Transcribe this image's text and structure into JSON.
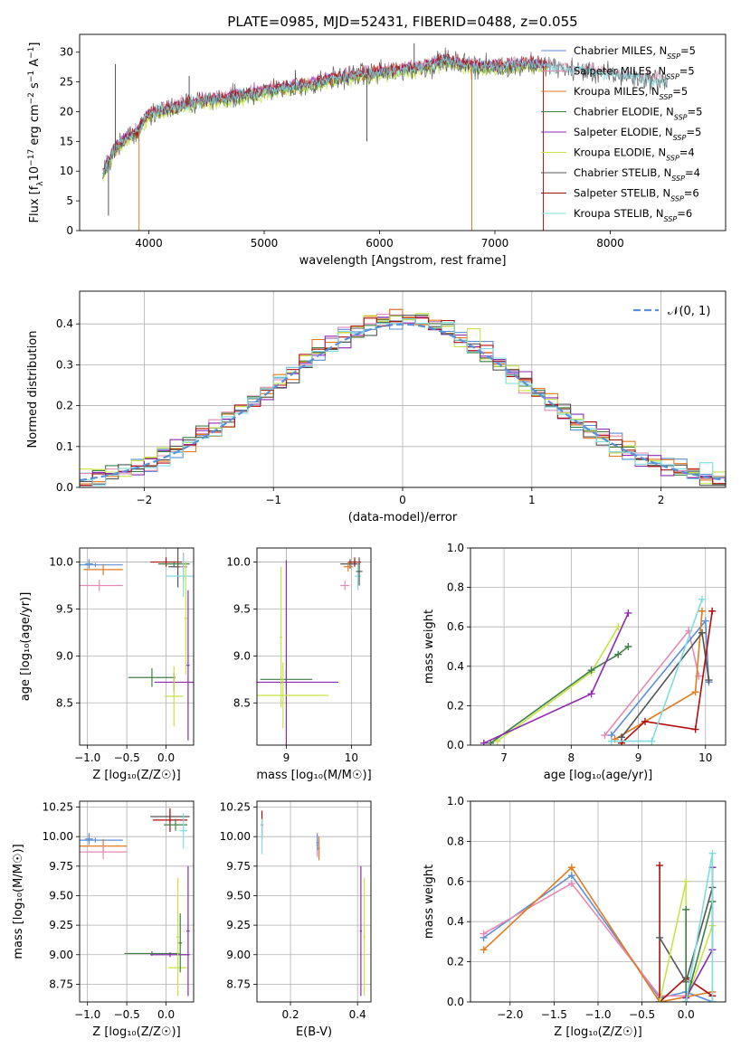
{
  "figure": {
    "title": "PLATE=0985, MJD=52431, FIBERID=0488, z=0.055"
  },
  "colors": {
    "chabrier_miles": "#5b8fd6",
    "salpeter_miles": "#e48ab4",
    "kroupa_miles": "#e27a1e",
    "chabrier_elodie": "#3f7f45",
    "salpeter_elodie": "#8e2ab0",
    "kroupa_elodie": "#c6e447",
    "chabrier_stelib": "#555555",
    "salpeter_stelib": "#b00e0e",
    "kroupa_stelib": "#7fdde0",
    "grid": "#b0b0b0",
    "gaussian": "#5b8fd6"
  },
  "chart_data": [
    {
      "id": "spectrum",
      "type": "line",
      "title": "PLATE=0985, MJD=52431, FIBERID=0488, z=0.055",
      "xlabel": "wavelength [Angstrom, rest frame]",
      "ylabel_parts": [
        "Flux [f",
        "λ",
        "10",
        "−17",
        " erg cm",
        "−2",
        " s",
        "−1",
        " A",
        "−1",
        "]"
      ],
      "xlim": [
        3400,
        9000
      ],
      "ylim": [
        0,
        33
      ],
      "xticks": [
        4000,
        5000,
        6000,
        7000,
        8000
      ],
      "yticks": [
        0,
        5,
        10,
        15,
        20,
        25,
        30
      ],
      "grid": false,
      "legend_position": "right",
      "continuum": {
        "x": [
          3600,
          3700,
          3800,
          3900,
          4000,
          4200,
          4400,
          4600,
          4800,
          5000,
          5200,
          5400,
          5600,
          5800,
          6000,
          6200,
          6400,
          6560,
          6700,
          6900,
          7100,
          7300,
          7500,
          7700,
          7900,
          8100,
          8300,
          8500
        ],
        "y": [
          9.5,
          13.5,
          15.5,
          16.5,
          19.5,
          20.5,
          21.5,
          22.0,
          22.5,
          23.5,
          24.0,
          24.5,
          25.5,
          26.0,
          26.5,
          27.0,
          27.5,
          28.5,
          28.0,
          27.5,
          27.5,
          28.0,
          27.5,
          27.0,
          26.5,
          26.0,
          25.5,
          25.0
        ]
      },
      "spikes": [
        {
          "x": 3650,
          "y": 2.5,
          "series": "Chabrier STELIB"
        },
        {
          "x": 3710,
          "y": 28.0,
          "series": "Chabrier STELIB"
        },
        {
          "x": 3915,
          "y": 0.0,
          "series": "Kroupa MILES"
        },
        {
          "x": 4350,
          "y": 26.0,
          "series": "Chabrier STELIB"
        },
        {
          "x": 5270,
          "y": 27.0,
          "series": "Chabrier STELIB"
        },
        {
          "x": 5890,
          "y": 15.0,
          "series": "Chabrier STELIB"
        },
        {
          "x": 6300,
          "y": 31.5,
          "series": "Chabrier STELIB"
        },
        {
          "x": 6800,
          "y": 0.0,
          "series": "Kroupa MILES"
        },
        {
          "x": 7420,
          "y": 0.0,
          "series": "Salpeter STELIB"
        }
      ],
      "series": [
        {
          "name": "Chabrier MILES",
          "nssp": "5",
          "color": "#5b8fd6",
          "offset": 0.2
        },
        {
          "name": "Salpeter MILES",
          "nssp": "5",
          "color": "#e48ab4",
          "offset": 0.5
        },
        {
          "name": "Kroupa MILES",
          "nssp": "5",
          "color": "#e27a1e",
          "offset": 0.0
        },
        {
          "name": "Chabrier ELODIE",
          "nssp": "5",
          "color": "#3f7f45",
          "offset": -0.3
        },
        {
          "name": "Salpeter ELODIE",
          "nssp": "5",
          "color": "#8e2ab0",
          "offset": 0.3
        },
        {
          "name": "Kroupa ELODIE",
          "nssp": "4",
          "color": "#c6e447",
          "offset": -0.6
        },
        {
          "name": "Chabrier STELIB",
          "nssp": "4",
          "color": "#555555",
          "offset": 0.0
        },
        {
          "name": "Salpeter STELIB",
          "nssp": "6",
          "color": "#b00e0e",
          "offset": 0.4
        },
        {
          "name": "Kroupa STELIB",
          "nssp": "6",
          "color": "#7fdde0",
          "offset": 0.1
        }
      ]
    },
    {
      "id": "residuals",
      "type": "line",
      "xlabel": "(data-model)/error",
      "ylabel": "Normed distribution",
      "xlim": [
        -2.5,
        2.5
      ],
      "ylim": [
        0,
        0.48
      ],
      "xticks": [
        -2,
        -1,
        0,
        1,
        2
      ],
      "yticks": [
        0.0,
        0.1,
        0.2,
        0.3,
        0.4
      ],
      "grid": true,
      "legend_position": "top-right",
      "gaussian_label": "𝒩(0, 1)",
      "bin_width": 0.1,
      "hist_series": [
        "#5b8fd6",
        "#e48ab4",
        "#e27a1e",
        "#3f7f45",
        "#8e2ab0",
        "#c6e447",
        "#555555",
        "#b00e0e",
        "#7fdde0"
      ]
    },
    {
      "id": "age_vs_Z",
      "type": "scatter",
      "xlabel": "Z [log₁₀(Z/Z☉)]",
      "ylabel": "age  [log₁₀(age/yr)]",
      "xlim": [
        -1.1,
        0.35
      ],
      "ylim": [
        8.05,
        10.15
      ],
      "xticks": [
        -1.0,
        -0.5,
        0.0
      ],
      "xticklabels": [
        "−1.0",
        "−0.5",
        "0.0"
      ],
      "yticks": [
        8.5,
        9.0,
        9.5,
        10.0
      ],
      "grid": true,
      "points": [
        {
          "x": -0.98,
          "y": 9.98,
          "xerr": 0.05,
          "yerr": 0.05,
          "color": "#5b8fd6"
        },
        {
          "x": -0.9,
          "y": 9.97,
          "xerr": 0.35,
          "yerr": 0.02,
          "color": "#5b8fd6"
        },
        {
          "x": -0.8,
          "y": 9.92,
          "xerr": 0.25,
          "yerr": 0.06,
          "color": "#e27a1e"
        },
        {
          "x": -0.85,
          "y": 9.75,
          "xerr": 0.3,
          "yerr": 0.06,
          "color": "#e48ab4"
        },
        {
          "x": 0.0,
          "y": 10.0,
          "xerr": 0.2,
          "yerr": 0.05,
          "color": "#b00e0e"
        },
        {
          "x": 0.1,
          "y": 9.98,
          "xerr": 0.2,
          "yerr": 0.03,
          "color": "#3f7f45"
        },
        {
          "x": 0.15,
          "y": 9.95,
          "xerr": 0.12,
          "yerr": 0.22,
          "color": "#555555"
        },
        {
          "x": 0.22,
          "y": 9.95,
          "xerr": 0.05,
          "yerr": 0.15,
          "color": "#e48ab4"
        },
        {
          "x": 0.22,
          "y": 9.85,
          "xerr": 0.22,
          "yerr": 0.22,
          "color": "#7fdde0"
        },
        {
          "x": -0.18,
          "y": 8.77,
          "xerr": 0.3,
          "yerr": 0.1,
          "color": "#3f7f45"
        },
        {
          "x": 0.1,
          "y": 8.72,
          "xerr": 0.25,
          "yerr": 0.1,
          "color": "#8e2ab0"
        },
        {
          "x": 0.1,
          "y": 8.57,
          "xerr": 0.12,
          "yerr": 0.32,
          "color": "#c6e447"
        },
        {
          "x": 0.28,
          "y": 8.9,
          "xerr": 0.02,
          "yerr": 0.8,
          "color": "#8e2ab0"
        },
        {
          "x": 0.25,
          "y": 9.4,
          "xerr": 0.02,
          "yerr": 0.6,
          "color": "#c6e447"
        }
      ]
    },
    {
      "id": "age_vs_mass",
      "type": "scatter",
      "xlabel": "mass [log₁₀(M/M☉)]",
      "xlim": [
        8.55,
        10.3
      ],
      "ylim": [
        8.05,
        10.15
      ],
      "xticks": [
        9,
        10
      ],
      "yticks": [
        8.5,
        9.0,
        9.5,
        10.0
      ],
      "grid": true,
      "points": [
        {
          "x": 9.98,
          "y": 9.98,
          "xerr": 0.15,
          "yerr": 0.05,
          "color": "#555555"
        },
        {
          "x": 10.05,
          "y": 10.0,
          "xerr": 0.1,
          "yerr": 0.05,
          "color": "#b00e0e"
        },
        {
          "x": 9.95,
          "y": 9.95,
          "xerr": 0.07,
          "yerr": 0.05,
          "color": "#e27a1e"
        },
        {
          "x": 9.9,
          "y": 9.75,
          "xerr": 0.07,
          "yerr": 0.05,
          "color": "#e48ab4"
        },
        {
          "x": 10.1,
          "y": 9.85,
          "xerr": 0.05,
          "yerr": 0.15,
          "color": "#7fdde0"
        },
        {
          "x": 10.12,
          "y": 9.9,
          "xerr": 0.05,
          "yerr": 0.15,
          "color": "#555555"
        },
        {
          "x": 9.0,
          "y": 8.75,
          "xerr": 0.4,
          "yerr": 0.1,
          "color": "#3f7f45"
        },
        {
          "x": 9.0,
          "y": 8.72,
          "xerr": 0.8,
          "yerr": 1.3,
          "color": "#8e2ab0"
        },
        {
          "x": 8.95,
          "y": 8.58,
          "xerr": 0.7,
          "yerr": 0.35,
          "color": "#c6e447"
        },
        {
          "x": 8.92,
          "y": 9.2,
          "xerr": 0.02,
          "yerr": 0.75,
          "color": "#c6e447"
        }
      ]
    },
    {
      "id": "mw_vs_age",
      "type": "line",
      "xlabel": "age  [log₁₀(age/yr)]",
      "ylabel": "mass weight",
      "xlim": [
        6.5,
        10.3
      ],
      "ylim": [
        0,
        1.0
      ],
      "xticks": [
        7,
        8,
        9,
        10
      ],
      "yticks": [
        0.0,
        0.2,
        0.4,
        0.6,
        0.8,
        1.0
      ],
      "grid": true,
      "series": [
        {
          "color": "#c6e447",
          "x": [
            6.9,
            8.3,
            8.7
          ],
          "y": [
            0.02,
            0.37,
            0.6
          ]
        },
        {
          "color": "#3f7f45",
          "x": [
            6.8,
            8.3,
            8.7,
            8.85
          ],
          "y": [
            0.01,
            0.38,
            0.46,
            0.5
          ]
        },
        {
          "color": "#8e2ab0",
          "x": [
            6.7,
            8.3,
            8.85
          ],
          "y": [
            0.01,
            0.26,
            0.67
          ]
        },
        {
          "color": "#e48ab4",
          "x": [
            8.5,
            9.75,
            9.9
          ],
          "y": [
            0.05,
            0.58,
            0.35
          ]
        },
        {
          "color": "#5b8fd6",
          "x": [
            8.6,
            10.0,
            10.05
          ],
          "y": [
            0.05,
            0.63,
            0.32
          ]
        },
        {
          "color": "#e27a1e",
          "x": [
            8.65,
            9.85,
            9.95
          ],
          "y": [
            0.03,
            0.27,
            0.68
          ]
        },
        {
          "color": "#555555",
          "x": [
            8.75,
            9.95,
            10.05
          ],
          "y": [
            0.04,
            0.57,
            0.33
          ]
        },
        {
          "color": "#b00e0e",
          "x": [
            8.75,
            9.1,
            9.85,
            10.1
          ],
          "y": [
            0.01,
            0.12,
            0.08,
            0.68
          ]
        },
        {
          "color": "#7fdde0",
          "x": [
            8.6,
            9.2,
            9.95
          ],
          "y": [
            0.02,
            0.02,
            0.74
          ]
        }
      ]
    },
    {
      "id": "mass_vs_Z",
      "type": "scatter",
      "xlabel": "Z [log₁₀(Z/Z☉)]",
      "ylabel": "mass [log₁₀(M/M☉)]",
      "xlim": [
        -1.1,
        0.35
      ],
      "ylim": [
        8.6,
        10.3
      ],
      "xticks": [
        -1.0,
        -0.5,
        0.0
      ],
      "xticklabels": [
        "−1.0",
        "−0.5",
        "0.0"
      ],
      "yticks": [
        8.75,
        9.0,
        9.25,
        9.5,
        9.75,
        10.0,
        10.25
      ],
      "grid": true,
      "points": [
        {
          "x": -0.98,
          "y": 9.98,
          "xerr": 0.05,
          "yerr": 0.05,
          "color": "#5b8fd6"
        },
        {
          "x": -0.9,
          "y": 9.97,
          "xerr": 0.35,
          "yerr": 0.02,
          "color": "#5b8fd6"
        },
        {
          "x": -0.8,
          "y": 9.92,
          "xerr": 0.3,
          "yerr": 0.06,
          "color": "#e27a1e"
        },
        {
          "x": -0.8,
          "y": 9.87,
          "xerr": 0.3,
          "yerr": 0.06,
          "color": "#e48ab4"
        },
        {
          "x": 0.05,
          "y": 10.17,
          "xerr": 0.25,
          "yerr": 0.05,
          "color": "#555555"
        },
        {
          "x": 0.05,
          "y": 10.14,
          "xerr": 0.22,
          "yerr": 0.1,
          "color": "#b00e0e"
        },
        {
          "x": 0.12,
          "y": 10.1,
          "xerr": 0.15,
          "yerr": 0.05,
          "color": "#3f7f45"
        },
        {
          "x": 0.22,
          "y": 10.05,
          "xerr": 0.05,
          "yerr": 0.15,
          "color": "#7fdde0"
        },
        {
          "x": -0.18,
          "y": 9.01,
          "xerr": 0.35,
          "yerr": 0.02,
          "color": "#3f7f45"
        },
        {
          "x": 0.05,
          "y": 9.0,
          "xerr": 0.25,
          "yerr": 0.02,
          "color": "#8e2ab0"
        },
        {
          "x": 0.15,
          "y": 8.89,
          "xerr": 0.12,
          "yerr": 0.02,
          "color": "#c6e447"
        },
        {
          "x": 0.28,
          "y": 9.2,
          "xerr": 0.02,
          "yerr": 0.55,
          "color": "#8e2ab0"
        },
        {
          "x": 0.15,
          "y": 9.15,
          "xerr": 0.02,
          "yerr": 0.5,
          "color": "#c6e447"
        },
        {
          "x": 0.18,
          "y": 9.1,
          "xerr": 0.02,
          "yerr": 0.25,
          "color": "#3f7f45"
        }
      ]
    },
    {
      "id": "mass_vs_ebv",
      "type": "scatter",
      "xlabel": "E(B-V)",
      "xlim": [
        0.1,
        0.44
      ],
      "ylim": [
        8.6,
        10.3
      ],
      "xticks": [
        0.2,
        0.4
      ],
      "yticks": [
        8.75,
        9.0,
        9.25,
        9.5,
        9.75,
        10.0,
        10.25
      ],
      "grid": true,
      "points": [
        {
          "x": 0.115,
          "y": 10.1,
          "xerr": 0.003,
          "yerr": 0.12,
          "color": "#b00e0e"
        },
        {
          "x": 0.115,
          "y": 10.0,
          "xerr": 0.003,
          "yerr": 0.15,
          "color": "#7fdde0"
        },
        {
          "x": 0.28,
          "y": 9.93,
          "xerr": 0.003,
          "yerr": 0.1,
          "color": "#e48ab4"
        },
        {
          "x": 0.285,
          "y": 9.9,
          "xerr": 0.003,
          "yerr": 0.1,
          "color": "#e27a1e"
        },
        {
          "x": 0.28,
          "y": 9.95,
          "xerr": 0.003,
          "yerr": 0.07,
          "color": "#5b8fd6"
        },
        {
          "x": 0.41,
          "y": 9.2,
          "xerr": 0.003,
          "yerr": 0.55,
          "color": "#8e2ab0"
        },
        {
          "x": 0.42,
          "y": 9.15,
          "xerr": 0.003,
          "yerr": 0.5,
          "color": "#c6e447"
        }
      ]
    },
    {
      "id": "mw_vs_Z",
      "type": "line",
      "xlabel": "Z [log₁₀(Z/Z☉)]",
      "ylabel": "mass weight",
      "xlim": [
        -2.45,
        0.45
      ],
      "ylim": [
        0,
        1.0
      ],
      "xticks": [
        -2.0,
        -1.5,
        -1.0,
        -0.5,
        0.0
      ],
      "xticklabels": [
        "−2.0",
        "−1.5",
        "−1.0",
        "−0.5",
        "0.0"
      ],
      "yticks": [
        0.0,
        0.2,
        0.4,
        0.6,
        0.8,
        1.0
      ],
      "grid": true,
      "series": [
        {
          "color": "#5b8fd6",
          "x": [
            -2.3,
            -1.3,
            -0.3,
            0.0,
            0.3
          ],
          "y": [
            0.32,
            0.63,
            0.02,
            0.05,
            0.0
          ]
        },
        {
          "color": "#e48ab4",
          "x": [
            -2.3,
            -1.3,
            -0.3,
            0.0
          ],
          "y": [
            0.34,
            0.59,
            0.03,
            0.03
          ]
        },
        {
          "color": "#e27a1e",
          "x": [
            -2.3,
            -1.3,
            -0.3,
            0.3
          ],
          "y": [
            0.26,
            0.67,
            0.0,
            0.05
          ]
        },
        {
          "color": "#b00e0e",
          "x": [
            -0.3,
            -0.3,
            0.0,
            0.3
          ],
          "y": [
            0.68,
            0.0,
            0.12,
            0.03
          ]
        },
        {
          "color": "#555555",
          "x": [
            -0.3,
            0.0,
            0.3
          ],
          "y": [
            0.32,
            0.1,
            0.57
          ]
        },
        {
          "color": "#c6e447",
          "x": [
            -0.3,
            0.0,
            0.0,
            0.3
          ],
          "y": [
            0.0,
            0.6,
            0.0,
            0.38
          ]
        },
        {
          "color": "#3f7f45",
          "x": [
            0.0,
            0.0,
            0.3
          ],
          "y": [
            0.46,
            0.0,
            0.5
          ]
        },
        {
          "color": "#8e2ab0",
          "x": [
            0.0,
            0.3,
            0.3
          ],
          "y": [
            0.02,
            0.26,
            0.67
          ]
        },
        {
          "color": "#7fdde0",
          "x": [
            0.0,
            0.3,
            0.3
          ],
          "y": [
            0.0,
            0.74,
            0.0
          ]
        }
      ]
    }
  ]
}
